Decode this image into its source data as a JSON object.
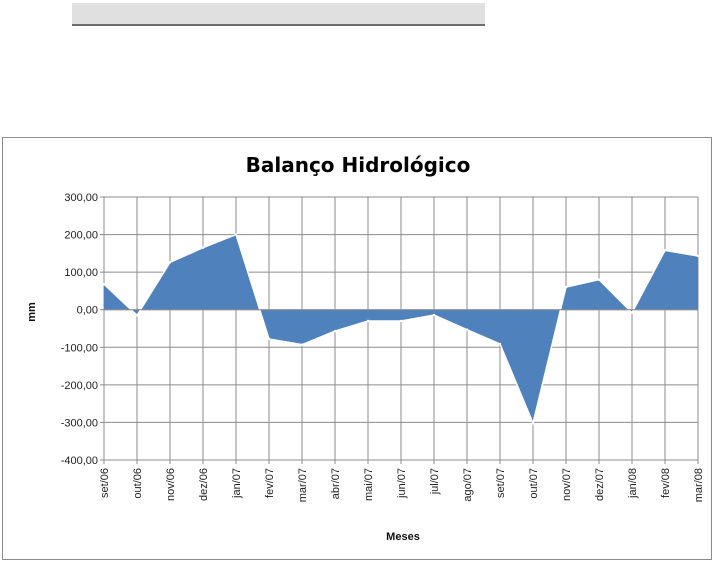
{
  "colors": {
    "area_fill": "#4f81bd",
    "area_edge": "#ffffff",
    "grid": "#8c8c8c"
  },
  "chart_data": {
    "type": "area",
    "title": "Balanço Hidrológico",
    "xlabel": "Meses",
    "ylabel": "mm",
    "ylim": [
      -400,
      300
    ],
    "yticks": [
      300,
      200,
      100,
      0,
      -100,
      -200,
      -300,
      -400
    ],
    "ytick_labels": [
      "300,00",
      "200,00",
      "100,00",
      "0,00",
      "-100,00",
      "-200,00",
      "-300,00",
      "-400,00"
    ],
    "grid": true,
    "legend": "none",
    "categories": [
      "set/06",
      "out/06",
      "nov/06",
      "dez/06",
      "jan/07",
      "fev/07",
      "mar/07",
      "abr/07",
      "mai/07",
      "jun/07",
      "jul/07",
      "ago/07",
      "set/07",
      "out/07",
      "nov/07",
      "dez/07",
      "jan/08",
      "fev/08",
      "mar/08"
    ],
    "values": [
      68,
      -15,
      126,
      165,
      200,
      -78,
      -93,
      -57,
      -30,
      -30,
      -14,
      -53,
      -91,
      -302,
      60,
      80,
      -8,
      158,
      143
    ]
  }
}
